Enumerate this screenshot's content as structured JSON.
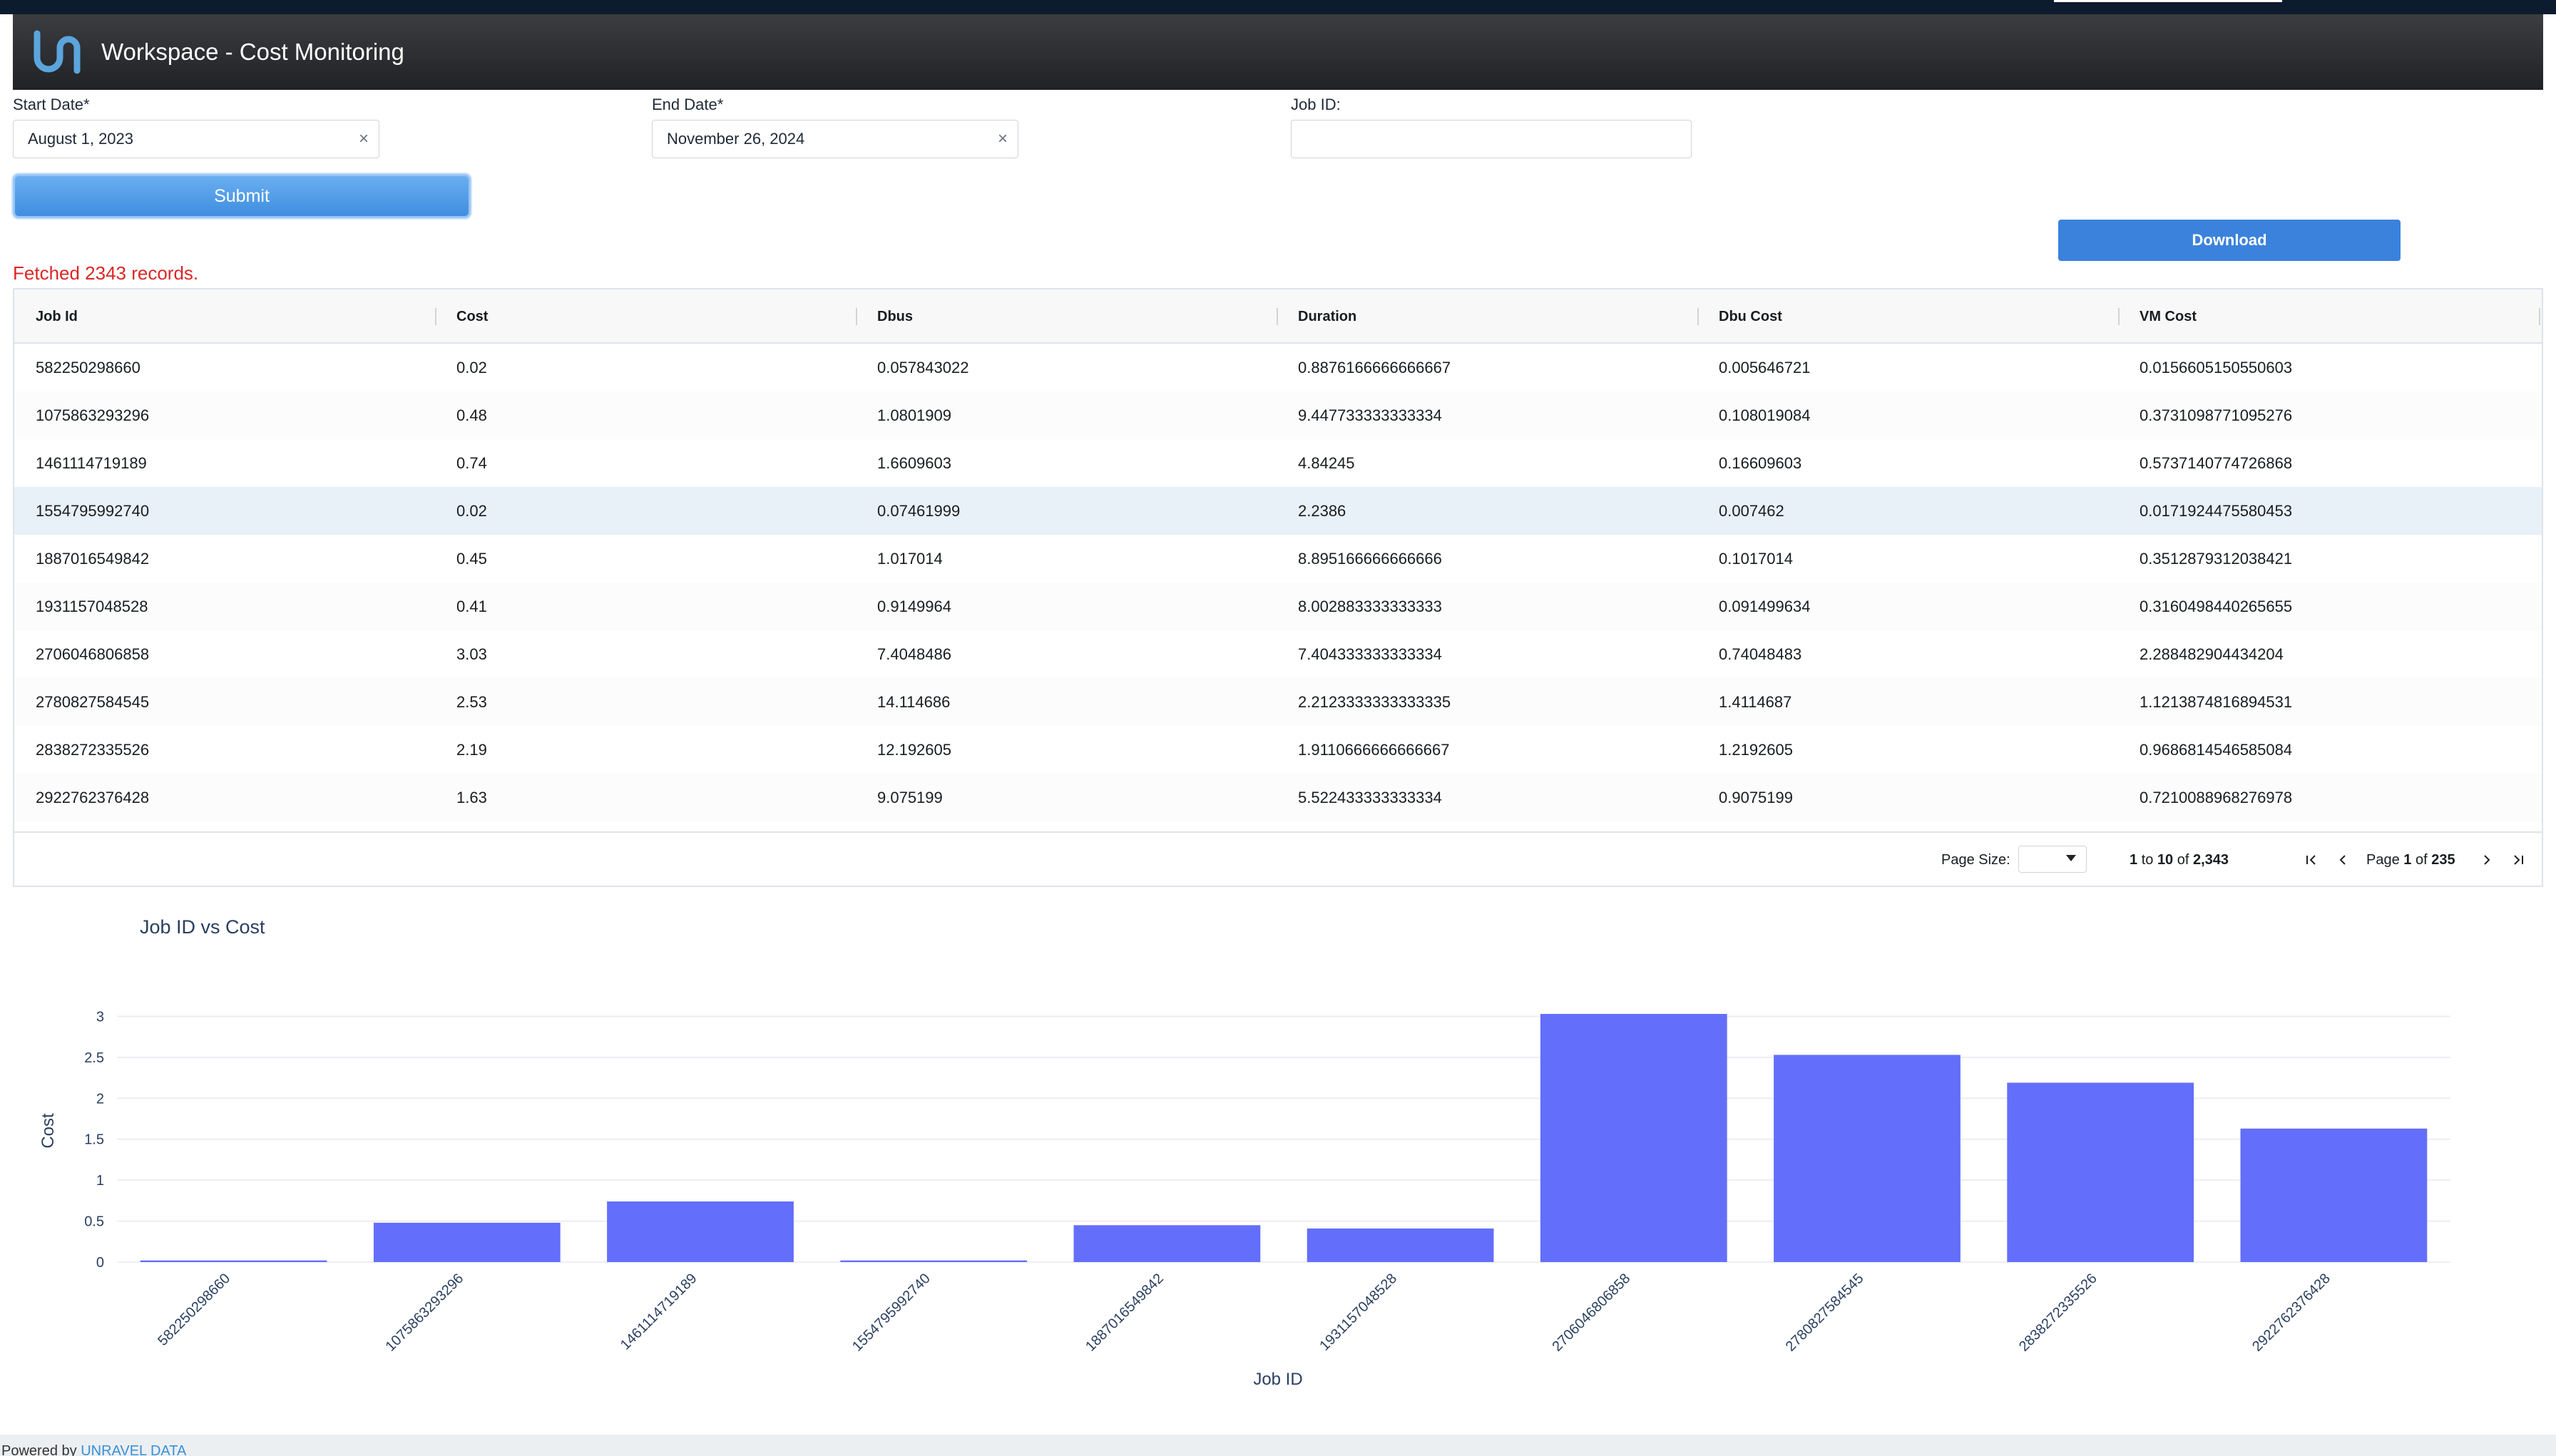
{
  "header": {
    "title": "Workspace - Cost Monitoring",
    "logo_icon": "unravel-logo-icon",
    "logo_color": "#5ba5dd"
  },
  "form": {
    "start_date_label": "Start Date*",
    "start_date_value": "August 1, 2023",
    "end_date_label": "End Date*",
    "end_date_value": "November 26, 2024",
    "job_id_label": "Job ID:",
    "job_id_value": "",
    "clear_glyph": "×",
    "submit_label": "Submit"
  },
  "download_label": "Download",
  "status_message": "Fetched 2343 records.",
  "table": {
    "columns": [
      "Job Id",
      "Cost",
      "Dbus",
      "Duration",
      "Dbu Cost",
      "VM Cost"
    ],
    "rows": [
      [
        "582250298660",
        "0.02",
        "0.057843022",
        "0.8876166666666667",
        "0.005646721",
        "0.0156605150550603"
      ],
      [
        "1075863293296",
        "0.48",
        "1.0801909",
        "9.447733333333334",
        "0.108019084",
        "0.3731098771095276"
      ],
      [
        "1461114719189",
        "0.74",
        "1.6609603",
        "4.84245",
        "0.16609603",
        "0.5737140774726868"
      ],
      [
        "1554795992740",
        "0.02",
        "0.07461999",
        "2.2386",
        "0.007462",
        "0.0171924475580453"
      ],
      [
        "1887016549842",
        "0.45",
        "1.017014",
        "8.895166666666666",
        "0.1017014",
        "0.3512879312038421"
      ],
      [
        "1931157048528",
        "0.41",
        "0.9149964",
        "8.002883333333333",
        "0.091499634",
        "0.3160498440265655"
      ],
      [
        "2706046806858",
        "3.03",
        "7.4048486",
        "7.404333333333334",
        "0.74048483",
        "2.288482904434204"
      ],
      [
        "2780827584545",
        "2.53",
        "14.114686",
        "2.2123333333333335",
        "1.4114687",
        "1.1213874816894531"
      ],
      [
        "2838272335526",
        "2.19",
        "12.192605",
        "1.9110666666666667",
        "1.2192605",
        "0.9686814546585084"
      ],
      [
        "2922762376428",
        "1.63",
        "9.075199",
        "5.522433333333334",
        "0.9075199",
        "0.7210088968276978"
      ]
    ],
    "selected_row": 3
  },
  "pagination": {
    "page_size_label": "Page Size:",
    "page_size_value": "",
    "range_from": "1",
    "range_to_word": "to",
    "range_to": "10",
    "of_word": "of",
    "total": "2,343",
    "page_word": "Page",
    "page_current": "1",
    "page_total": "235",
    "first_icon": "first-page-icon",
    "prev_icon": "prev-page-icon",
    "next_icon": "next-page-icon",
    "last_icon": "last-page-icon"
  },
  "chart_data": {
    "type": "bar",
    "title": "Job ID vs Cost",
    "xlabel": "Job ID",
    "ylabel": "Cost",
    "categories": [
      "582250298660",
      "1075863293296",
      "1461114719189",
      "1554795992740",
      "1887016549842",
      "1931157048528",
      "2706046806858",
      "2780827584545",
      "2838272335526",
      "2922762376428"
    ],
    "values": [
      0.02,
      0.48,
      0.74,
      0.02,
      0.45,
      0.41,
      3.03,
      2.53,
      2.19,
      1.63
    ],
    "yticks": [
      "0",
      "0.5",
      "1",
      "1.5",
      "2",
      "2.5",
      "3"
    ],
    "ylim": [
      0,
      3.03
    ],
    "grid": true,
    "bar_color": "#636efa"
  },
  "footer": {
    "prefix": "Powered by",
    "link": "UNRAVEL DATA"
  }
}
